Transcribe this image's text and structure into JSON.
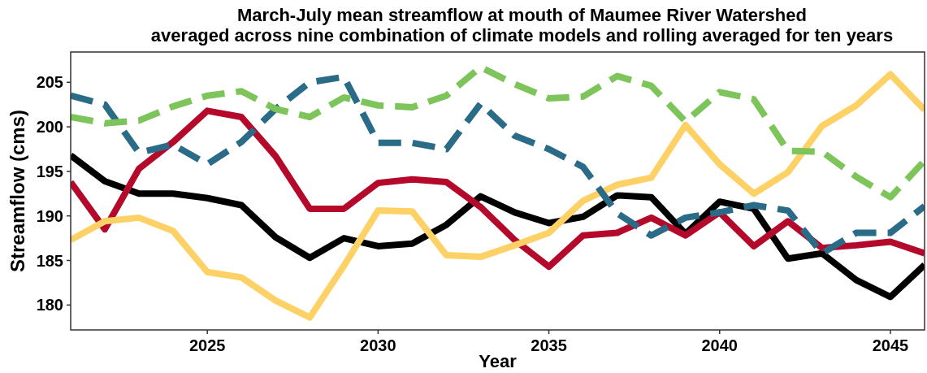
{
  "chart_data": {
    "type": "line",
    "title": "March-July mean streamflow at mouth of Maumee River Watershed\naveraged across nine combination of climate models and rolling averaged for ten years",
    "xlabel": "Year",
    "ylabel": "Streamflow (cms)",
    "x": [
      2021,
      2022,
      2023,
      2024,
      2025,
      2026,
      2027,
      2028,
      2029,
      2030,
      2031,
      2032,
      2033,
      2034,
      2035,
      2036,
      2037,
      2038,
      2039,
      2040,
      2041,
      2042,
      2043,
      2044,
      2045,
      2046
    ],
    "series": [
      {
        "color": "#000000",
        "line_style": "solid",
        "values": [
          196.8,
          193.9,
          192.5,
          192.5,
          192.0,
          191.2,
          187.6,
          185.3,
          187.5,
          186.6,
          186.9,
          189.0,
          192.2,
          190.4,
          189.2,
          189.9,
          192.3,
          192.1,
          188.0,
          191.6,
          190.8,
          185.2,
          185.8,
          182.8,
          180.9,
          184.5
        ]
      },
      {
        "color": "#b5092c",
        "line_style": "solid",
        "values": [
          193.8,
          188.5,
          195.3,
          198.3,
          201.8,
          201.1,
          196.7,
          190.8,
          190.8,
          193.7,
          194.1,
          193.8,
          191.0,
          187.3,
          184.3,
          187.8,
          188.1,
          189.8,
          187.8,
          190.4,
          186.6,
          189.4,
          186.4,
          186.7,
          187.1,
          185.8
        ]
      },
      {
        "color": "#fdd166",
        "line_style": "solid",
        "values": [
          187.3,
          189.4,
          189.8,
          188.3,
          183.7,
          183.1,
          180.5,
          178.6,
          184.4,
          190.6,
          190.5,
          185.6,
          185.4,
          186.7,
          188.1,
          191.7,
          193.5,
          194.3,
          200.2,
          195.8,
          192.5,
          194.9,
          200.1,
          202.4,
          205.9,
          201.9
        ]
      },
      {
        "color": "#2a6b88",
        "line_style": "dashed",
        "values": [
          203.5,
          202.5,
          197.1,
          198.0,
          195.8,
          198.3,
          202.0,
          205.0,
          205.6,
          198.2,
          198.2,
          197.5,
          202.6,
          199.0,
          197.5,
          195.5,
          190.3,
          187.8,
          189.8,
          190.4,
          191.2,
          190.6,
          185.8,
          188.1,
          188.1,
          191.1
        ]
      },
      {
        "color": "#7dc55a",
        "line_style": "dashed",
        "values": [
          201.1,
          200.4,
          200.7,
          202.3,
          203.5,
          204.0,
          202.0,
          201.1,
          203.3,
          202.4,
          202.2,
          203.5,
          206.7,
          204.8,
          203.2,
          203.4,
          205.7,
          204.6,
          200.6,
          203.9,
          203.1,
          197.3,
          197.2,
          194.4,
          192.1,
          196.2
        ]
      }
    ],
    "xlim": [
      2021,
      2046
    ],
    "ylim": [
      177.2,
      208.4
    ],
    "xticks": [
      2025,
      2030,
      2035,
      2040,
      2045
    ],
    "yticks": [
      180,
      185,
      190,
      195,
      200,
      205
    ],
    "grid": false
  }
}
